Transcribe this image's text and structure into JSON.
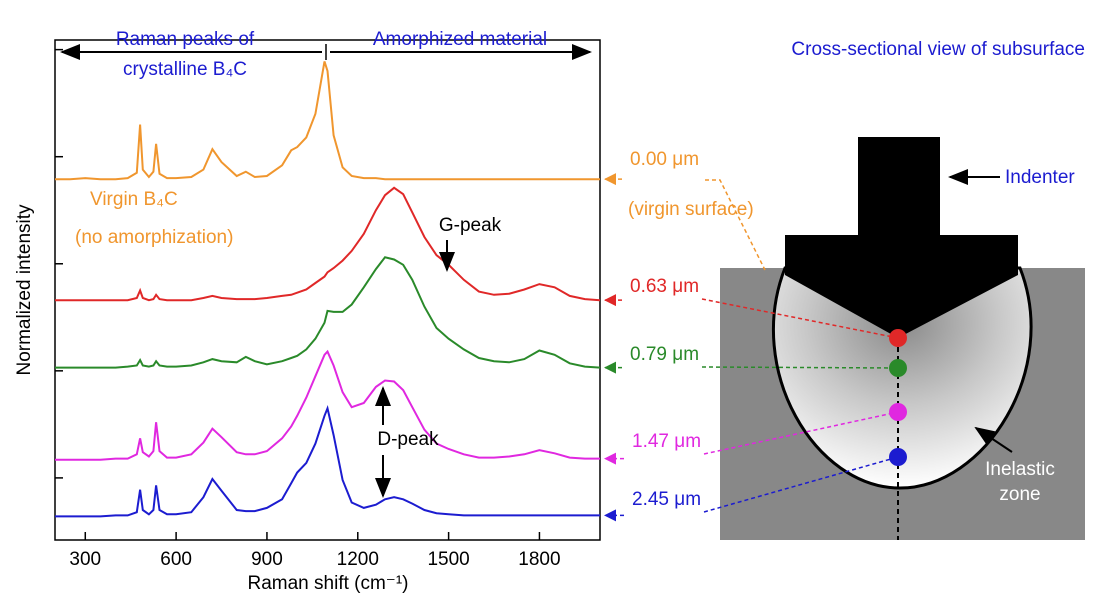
{
  "chart_data": {
    "type": "line",
    "xlabel": "Raman shift (cm⁻¹)",
    "ylabel": "Normalized intensity",
    "x": [
      200,
      250,
      300,
      350,
      400,
      440,
      470,
      481,
      490,
      510,
      525,
      534,
      545,
      570,
      600,
      650,
      690,
      720,
      750,
      800,
      830,
      860,
      900,
      950,
      980,
      1000,
      1030,
      1060,
      1090,
      1100,
      1120,
      1150,
      1180,
      1220,
      1260,
      1290,
      1320,
      1350,
      1380,
      1420,
      1460,
      1500,
      1550,
      1600,
      1650,
      1700,
      1750,
      1800,
      1850,
      1900,
      1950,
      2000
    ],
    "series": [
      {
        "name": "0.00 μm",
        "color": "#f0962e",
        "values": [
          3.79,
          3.79,
          3.8,
          3.79,
          3.79,
          3.8,
          3.85,
          4.3,
          3.88,
          3.81,
          3.86,
          4.12,
          3.84,
          3.8,
          3.8,
          3.81,
          3.88,
          4.07,
          3.95,
          3.82,
          3.86,
          3.81,
          3.82,
          3.92,
          4.06,
          4.09,
          4.18,
          4.4,
          4.89,
          4.8,
          4.2,
          3.9,
          3.82,
          3.8,
          3.8,
          3.79,
          3.79,
          3.79,
          3.79,
          3.79,
          3.79,
          3.79,
          3.79,
          3.79,
          3.79,
          3.79,
          3.79,
          3.79,
          3.79,
          3.79,
          3.79,
          3.79
        ]
      },
      {
        "name": "0.63 μm",
        "color": "#e02828",
        "values": [
          2.66,
          2.66,
          2.66,
          2.66,
          2.66,
          2.66,
          2.68,
          2.75,
          2.68,
          2.66,
          2.67,
          2.71,
          2.67,
          2.66,
          2.66,
          2.66,
          2.68,
          2.7,
          2.68,
          2.67,
          2.67,
          2.67,
          2.68,
          2.7,
          2.71,
          2.73,
          2.76,
          2.82,
          2.88,
          2.92,
          2.96,
          3.03,
          3.12,
          3.28,
          3.5,
          3.64,
          3.71,
          3.65,
          3.48,
          3.25,
          3.08,
          2.99,
          2.85,
          2.74,
          2.71,
          2.72,
          2.76,
          2.81,
          2.78,
          2.7,
          2.67,
          2.66
        ]
      },
      {
        "name": "0.79 μm",
        "color": "#2a8a2a",
        "values": [
          2.03,
          2.03,
          2.03,
          2.03,
          2.03,
          2.04,
          2.05,
          2.1,
          2.05,
          2.04,
          2.05,
          2.09,
          2.05,
          2.04,
          2.04,
          2.05,
          2.08,
          2.11,
          2.09,
          2.08,
          2.13,
          2.09,
          2.06,
          2.09,
          2.12,
          2.14,
          2.2,
          2.3,
          2.45,
          2.56,
          2.55,
          2.55,
          2.62,
          2.78,
          2.95,
          3.06,
          3.04,
          2.99,
          2.85,
          2.6,
          2.4,
          2.3,
          2.2,
          2.12,
          2.09,
          2.08,
          2.11,
          2.19,
          2.15,
          2.07,
          2.04,
          2.03
        ]
      },
      {
        "name": "1.47 μm",
        "color": "#e028e0",
        "values": [
          1.17,
          1.17,
          1.17,
          1.17,
          1.18,
          1.18,
          1.22,
          1.37,
          1.24,
          1.2,
          1.25,
          1.52,
          1.25,
          1.19,
          1.19,
          1.22,
          1.33,
          1.46,
          1.38,
          1.24,
          1.22,
          1.22,
          1.25,
          1.37,
          1.48,
          1.58,
          1.75,
          1.95,
          2.15,
          2.18,
          2.05,
          1.8,
          1.66,
          1.7,
          1.85,
          1.91,
          1.9,
          1.82,
          1.66,
          1.45,
          1.32,
          1.27,
          1.22,
          1.19,
          1.19,
          1.2,
          1.22,
          1.26,
          1.23,
          1.19,
          1.18,
          1.18
        ]
      },
      {
        "name": "2.45 μm",
        "color": "#1c1cd0",
        "values": [
          0.64,
          0.64,
          0.64,
          0.64,
          0.65,
          0.65,
          0.68,
          0.89,
          0.7,
          0.66,
          0.7,
          0.93,
          0.7,
          0.66,
          0.66,
          0.68,
          0.82,
          0.99,
          0.88,
          0.7,
          0.69,
          0.69,
          0.72,
          0.8,
          0.95,
          1.05,
          1.14,
          1.32,
          1.58,
          1.65,
          1.4,
          0.98,
          0.77,
          0.72,
          0.75,
          0.8,
          0.82,
          0.8,
          0.76,
          0.7,
          0.67,
          0.66,
          0.65,
          0.65,
          0.65,
          0.65,
          0.65,
          0.65,
          0.65,
          0.65,
          0.65,
          0.65
        ]
      }
    ],
    "xlim": [
      200,
      2000
    ],
    "xticks": [
      300,
      600,
      900,
      1200,
      1500,
      1800
    ],
    "ylim": [
      0.42,
      5.09
    ],
    "yticks": [
      1,
      2,
      3,
      4,
      5
    ],
    "annotations": [
      "Raman peaks of",
      "crystalline B₄C",
      "Amorphized material",
      "Virgin B₄C",
      "(no amorphization)",
      "G-peak",
      "D-peak",
      "(virgin surface)"
    ]
  },
  "diagram": {
    "title": "Cross-sectional view of subsurface",
    "indenter_label": "Indenter",
    "zone_label": [
      "Inelastic",
      "zone"
    ]
  }
}
